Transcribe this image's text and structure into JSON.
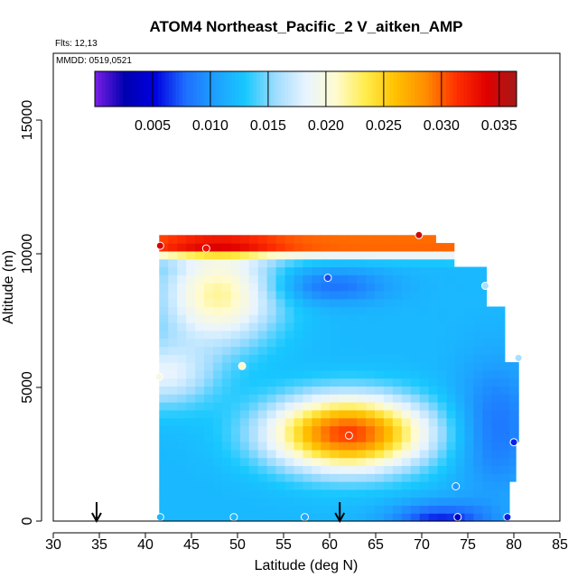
{
  "chart_data": {
    "type": "heatmap",
    "title": "ATOM4 Northeast_Pacific_2 V_aitken_AMP",
    "flights_label": "Flts: 12,13",
    "dates_label": "MMDD: 0519,0521",
    "xlabel": "Latitude (deg N)",
    "ylabel": "Altitude (m)",
    "xlim": [
      30,
      85
    ],
    "ylim": [
      0,
      17500
    ],
    "xticks": [
      "30",
      "35",
      "40",
      "45",
      "50",
      "55",
      "60",
      "65",
      "70",
      "75",
      "80",
      "85"
    ],
    "yticks": [
      "0",
      "5000",
      "10000",
      "15000"
    ],
    "colorbar": {
      "min": 0.0,
      "max": 0.0365,
      "ticks": [
        "0.005",
        "0.010",
        "0.015",
        "0.020",
        "0.025",
        "0.030",
        "0.035"
      ],
      "colors": [
        "#7a1fe6",
        "#0000b0",
        "#0000e0",
        "#1e6eff",
        "#1ea0ff",
        "#18c8ff",
        "#9fdcff",
        "#e8f4ff",
        "#fffbd0",
        "#ffec4a",
        "#ffc000",
        "#ff8c00",
        "#ff3000",
        "#e00000",
        "#a61a1a"
      ]
    },
    "lat_range": [
      41.5,
      80.5
    ],
    "alt_range": [
      0,
      10700
    ],
    "arrows_lat": [
      34.7,
      61.1
    ],
    "sample_points": [
      {
        "lat": 41.6,
        "alt": 150,
        "v": 0.012
      },
      {
        "lat": 49.6,
        "alt": 150,
        "v": 0.012
      },
      {
        "lat": 57.3,
        "alt": 150,
        "v": 0.011
      },
      {
        "lat": 73.9,
        "alt": 150,
        "v": 0.004
      },
      {
        "lat": 79.3,
        "alt": 150,
        "v": 0.006
      },
      {
        "lat": 73.7,
        "alt": 1300,
        "v": 0.01
      },
      {
        "lat": 80.0,
        "alt": 2950,
        "v": 0.006
      },
      {
        "lat": 62.1,
        "alt": 3200,
        "v": 0.031
      },
      {
        "lat": 41.5,
        "alt": 5400,
        "v": 0.02
      },
      {
        "lat": 50.5,
        "alt": 5800,
        "v": 0.021
      },
      {
        "lat": 80.5,
        "alt": 6100,
        "v": 0.016
      },
      {
        "lat": 76.9,
        "alt": 8800,
        "v": 0.016
      },
      {
        "lat": 59.8,
        "alt": 9100,
        "v": 0.007
      },
      {
        "lat": 46.6,
        "alt": 10200,
        "v": 0.033
      },
      {
        "lat": 41.6,
        "alt": 10300,
        "v": 0.034
      },
      {
        "lat": 69.7,
        "alt": 10700,
        "v": 0.035
      }
    ]
  }
}
